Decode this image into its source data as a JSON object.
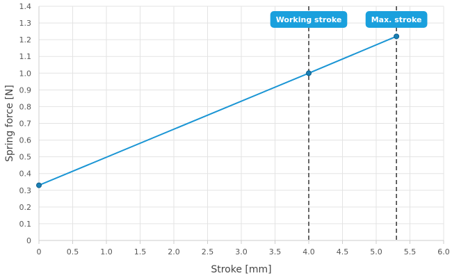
{
  "chart_data": {
    "type": "line",
    "xlabel": "Stroke [mm]",
    "ylabel": "Spring force [N]",
    "xlim": [
      0,
      6.0
    ],
    "ylim": [
      0,
      1.4
    ],
    "x_ticks": [
      "0",
      "0.5",
      "1.0",
      "1.5",
      "2.0",
      "2.5",
      "3.0",
      "3.5",
      "4.0",
      "4.5",
      "5.0",
      "5.5",
      "6.0"
    ],
    "y_ticks": [
      "0",
      "0.1",
      "0.2",
      "0.3",
      "0.4",
      "0.5",
      "0.6",
      "0.7",
      "0.8",
      "0.9",
      "1.0",
      "1.1",
      "1.2",
      "1.3",
      "1.4"
    ],
    "grid": true,
    "series": [
      {
        "x": [
          0,
          4.0,
          5.3
        ],
        "y": [
          0.33,
          1.0,
          1.22
        ]
      }
    ],
    "annotations": [
      {
        "label": "Working stroke",
        "x": 4.0
      },
      {
        "label": "Max. stroke",
        "x": 5.3
      }
    ],
    "colors": {
      "line": "#1a95d4",
      "marker": "#1a7fb4",
      "badge": "#1aa0dd",
      "reference_line": "#333333"
    }
  }
}
